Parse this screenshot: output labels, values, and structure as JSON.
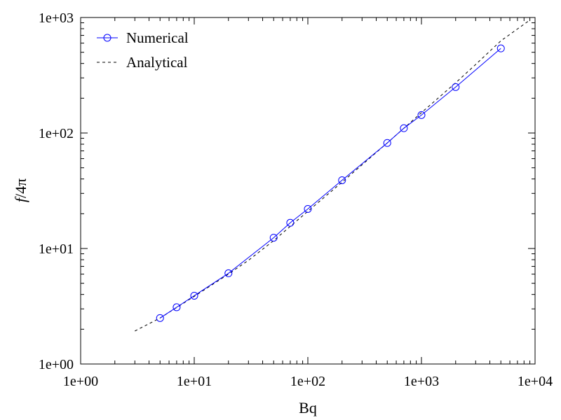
{
  "chart_data": {
    "type": "line",
    "title": "",
    "xlabel": "Bq",
    "ylabel_italic": "f",
    "ylabel_rest": "/4π",
    "x_scale": "log",
    "y_scale": "log",
    "xlim": [
      1,
      10000
    ],
    "ylim": [
      1,
      1000
    ],
    "grid": false,
    "legend_position": "top-left",
    "x_ticks": [
      {
        "value": 1,
        "label": "1e+00"
      },
      {
        "value": 10,
        "label": "1e+01"
      },
      {
        "value": 100,
        "label": "1e+02"
      },
      {
        "value": 1000,
        "label": "1e+03"
      },
      {
        "value": 10000,
        "label": "1e+04"
      }
    ],
    "y_ticks": [
      {
        "value": 1,
        "label": "1e+00"
      },
      {
        "value": 10,
        "label": "1e+01"
      },
      {
        "value": 100,
        "label": "1e+02"
      },
      {
        "value": 1000,
        "label": "1e+03"
      }
    ],
    "series": [
      {
        "name": "Numerical",
        "style": "solid-line-circle-markers",
        "color": "#0000ff",
        "x": [
          5,
          7,
          10,
          20,
          50,
          70,
          100,
          200,
          500,
          700,
          1000,
          2000,
          5000
        ],
        "y": [
          2.5,
          3.1,
          3.9,
          6.1,
          12.4,
          16.7,
          22,
          39,
          82,
          110,
          143,
          250,
          540
        ]
      },
      {
        "name": "Analytical",
        "style": "dashed-line",
        "color": "#000000",
        "x": [
          3,
          5,
          10,
          20,
          30,
          50,
          100,
          200,
          300,
          500,
          1000,
          2000,
          3000,
          5000,
          9000
        ],
        "y": [
          1.93,
          2.5,
          3.85,
          6.0,
          7.9,
          11.7,
          21,
          37.5,
          53,
          82,
          150,
          272,
          392,
          628,
          950
        ]
      }
    ]
  }
}
